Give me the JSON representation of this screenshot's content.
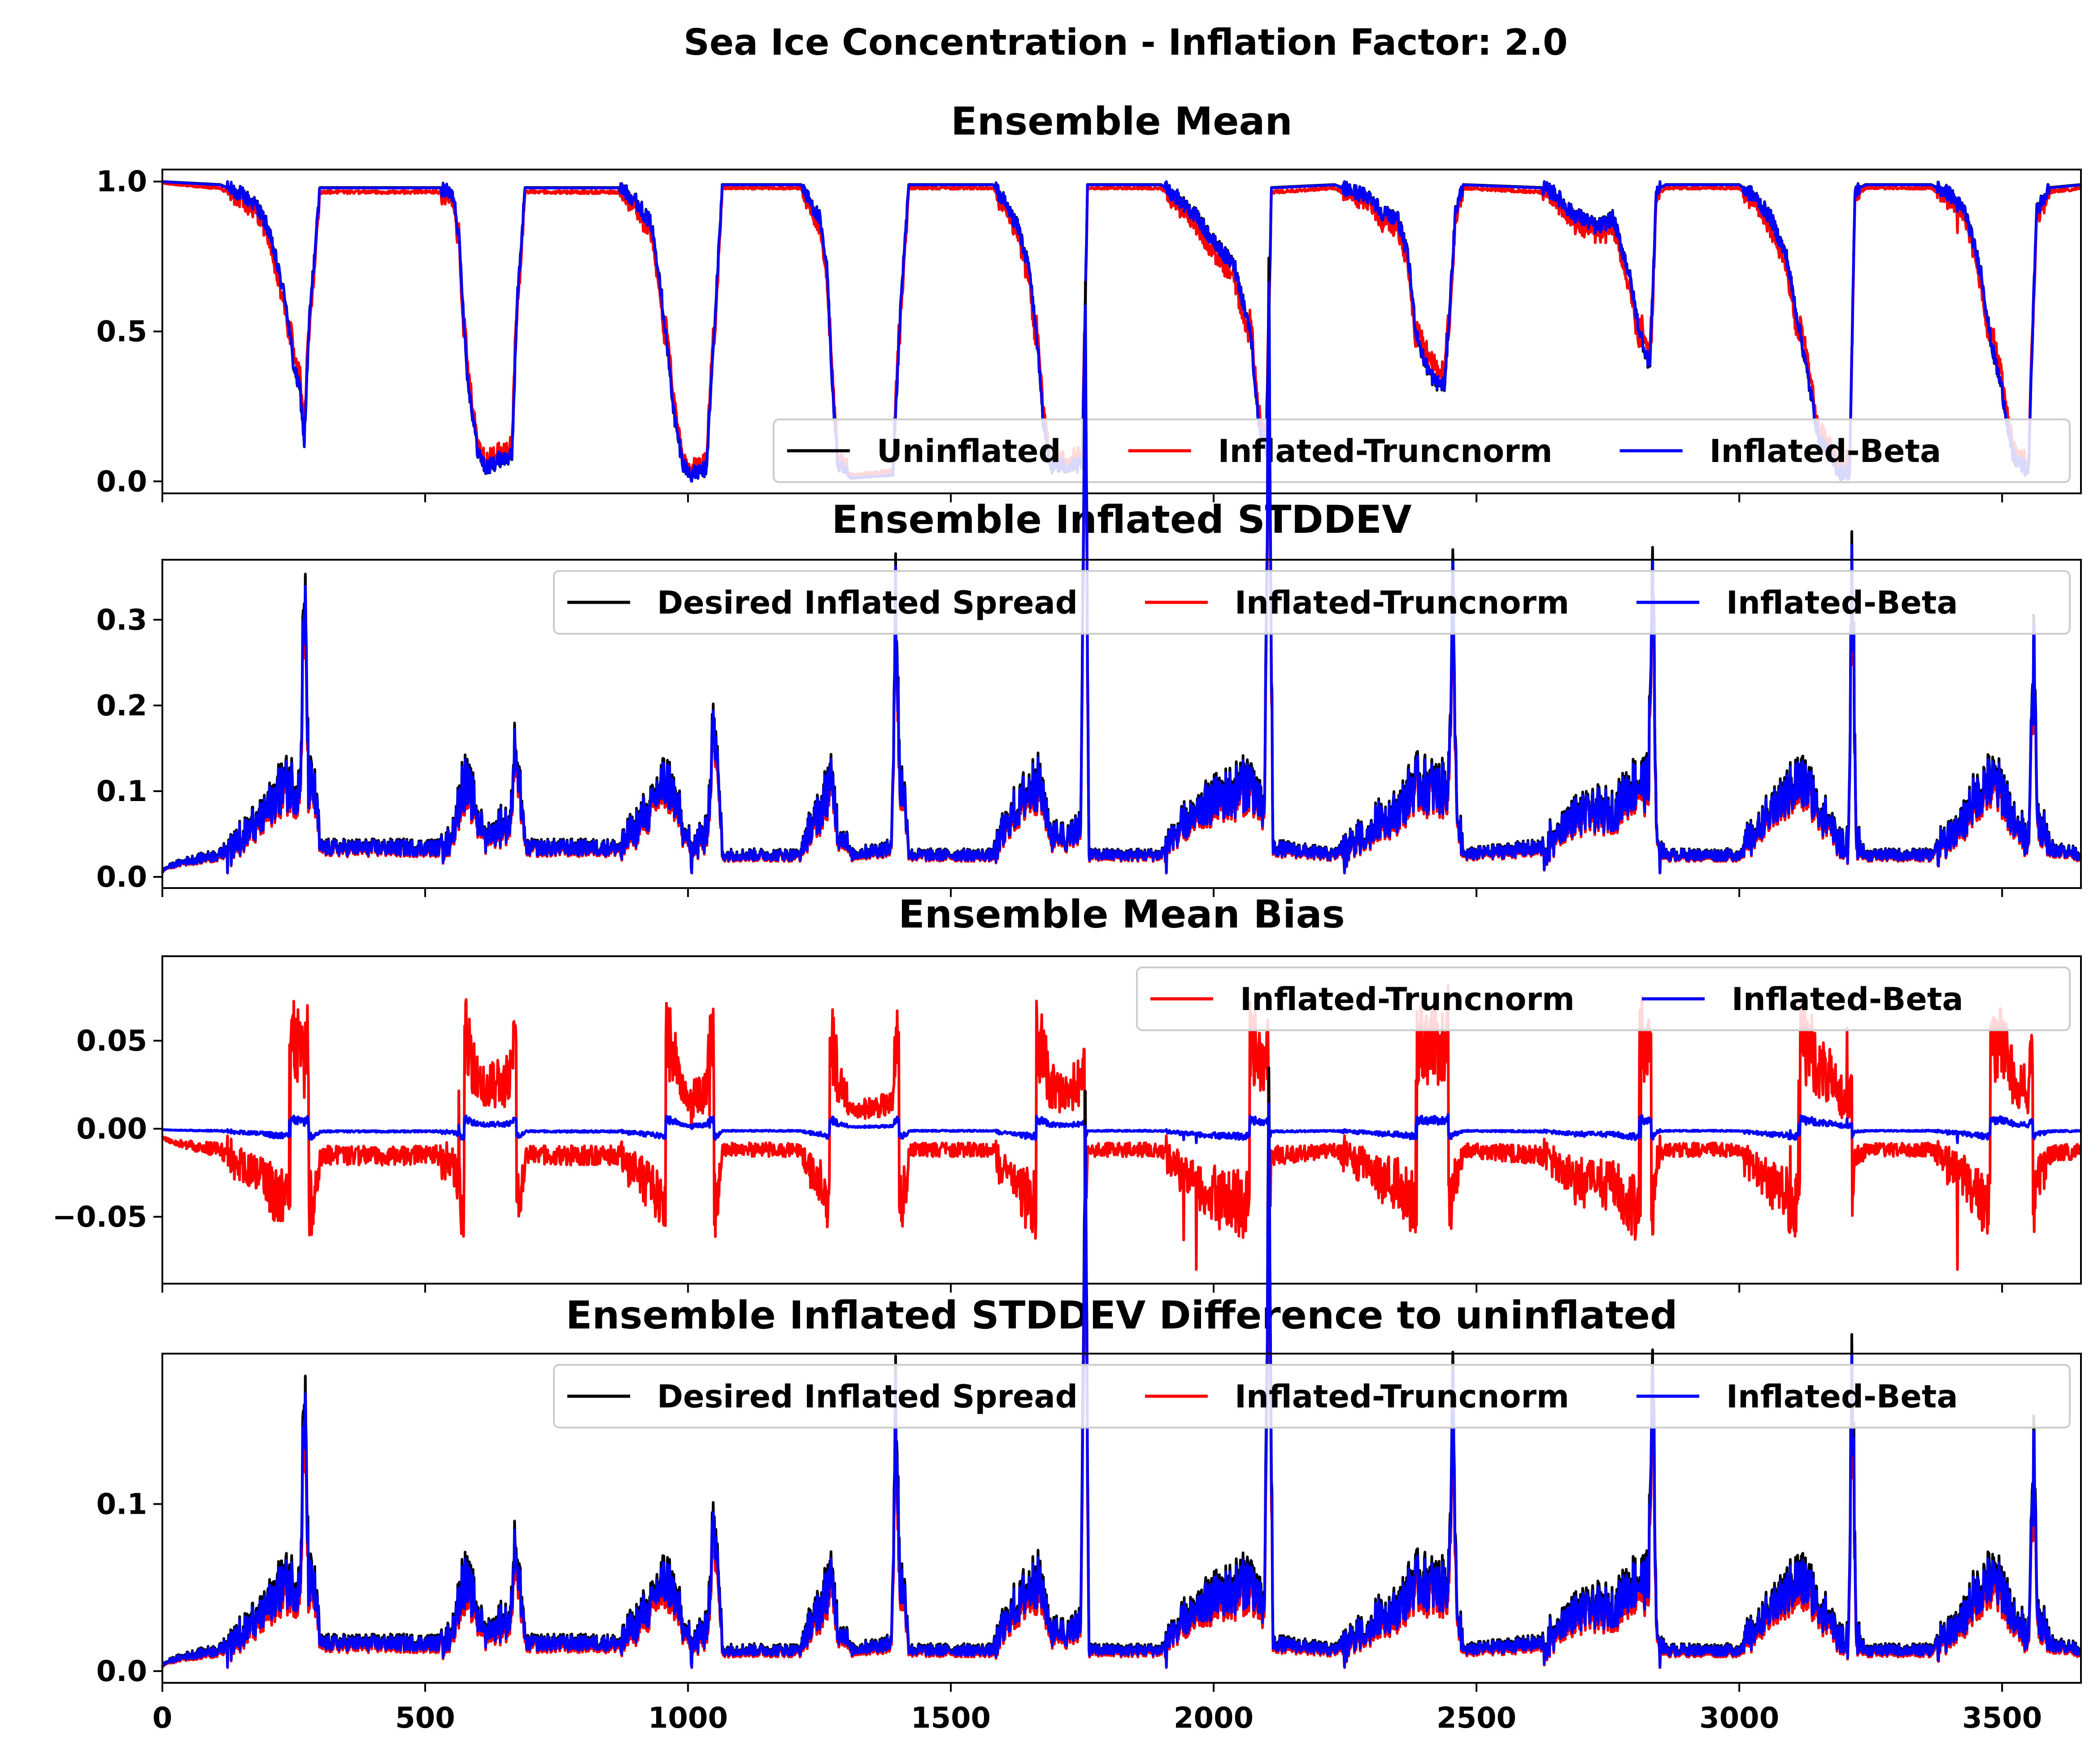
{
  "title": "Sea Ice Concentration - Inflation Factor: 2.0",
  "colors": {
    "black": "#000000",
    "red": "#ff0000",
    "blue": "#0000ff"
  },
  "xaxis": {
    "lim": [
      0,
      3650
    ],
    "ticks": [
      0,
      500,
      1000,
      1500,
      2000,
      2500,
      3000,
      3500
    ],
    "tick_labels": [
      "0",
      "500",
      "1000",
      "1500",
      "2000",
      "2500",
      "3000",
      "3500"
    ]
  },
  "chart_data": [
    {
      "type": "line",
      "title": "Ensemble Mean",
      "xlabel": "",
      "ylabel": "",
      "ylim": [
        -0.04,
        1.04
      ],
      "yticks": [
        0.0,
        0.5,
        1.0
      ],
      "ytick_labels": [
        "0.0",
        "0.5",
        "1.0"
      ],
      "legend": {
        "position": "lower-right",
        "columns": 3
      },
      "series": [
        {
          "name": "Uninflated",
          "color": "black",
          "values": []
        },
        {
          "name": "Inflated-Truncnorm",
          "color": "red",
          "values": []
        },
        {
          "name": "Inflated-Beta",
          "color": "blue",
          "values": []
        }
      ]
    },
    {
      "type": "line",
      "title": "Ensemble Inflated STDDEV",
      "xlabel": "",
      "ylabel": "",
      "ylim": [
        -0.013,
        0.37
      ],
      "yticks": [
        0.0,
        0.1,
        0.2,
        0.3
      ],
      "ytick_labels": [
        "0.0",
        "0.1",
        "0.2",
        "0.3"
      ],
      "legend": {
        "position": "upper-right",
        "columns": 3
      },
      "series": [
        {
          "name": "Desired Inflated Spread",
          "color": "black",
          "values": []
        },
        {
          "name": "Inflated-Truncnorm",
          "color": "red",
          "values": []
        },
        {
          "name": "Inflated-Beta",
          "color": "blue",
          "values": []
        }
      ]
    },
    {
      "type": "line",
      "title": "Ensemble Mean Bias",
      "xlabel": "",
      "ylabel": "",
      "ylim": [
        -0.088,
        0.098
      ],
      "yticks": [
        -0.05,
        0.0,
        0.05
      ],
      "ytick_labels": [
        "−0.05",
        "0.00",
        "0.05"
      ],
      "legend": {
        "position": "upper-right",
        "columns": 2
      },
      "series": [
        {
          "name": "Inflated-Truncnorm",
          "color": "red",
          "values": []
        },
        {
          "name": "Inflated-Beta",
          "color": "blue",
          "values": []
        }
      ]
    },
    {
      "type": "line",
      "title": "Ensemble Inflated STDDEV Difference to uninflated",
      "xlabel": "",
      "ylabel": "",
      "ylim": [
        -0.007,
        0.19
      ],
      "yticks": [
        0.0,
        0.1
      ],
      "ytick_labels": [
        "0.0",
        "0.1"
      ],
      "legend": {
        "position": "upper-right",
        "columns": 3
      },
      "series": [
        {
          "name": "Desired Inflated Spread",
          "color": "black",
          "values": []
        },
        {
          "name": "Inflated-Truncnorm",
          "color": "red",
          "values": []
        },
        {
          "name": "Inflated-Beta",
          "color": "blue",
          "values": []
        }
      ]
    }
  ]
}
